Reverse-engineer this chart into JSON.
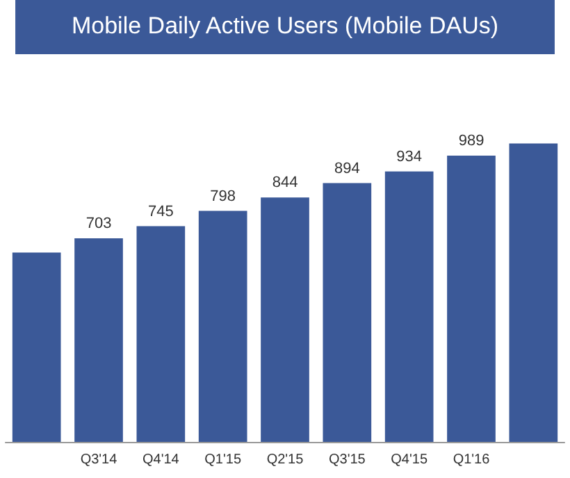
{
  "chart_data": {
    "type": "bar",
    "title": "Mobile Daily Active Users (Mobile DAUs)",
    "categories": [
      null,
      "Q3'14",
      "Q4'14",
      "Q1'15",
      "Q2'15",
      "Q3'15",
      "Q4'15",
      "Q1'16",
      null
    ],
    "values": [
      654,
      703,
      745,
      798,
      844,
      894,
      934,
      989,
      1031
    ],
    "value_labels": [
      null,
      "703",
      "745",
      "798",
      "844",
      "894",
      "934",
      "989",
      null
    ],
    "color": "#3b5998",
    "tick_labels": "x"
  }
}
